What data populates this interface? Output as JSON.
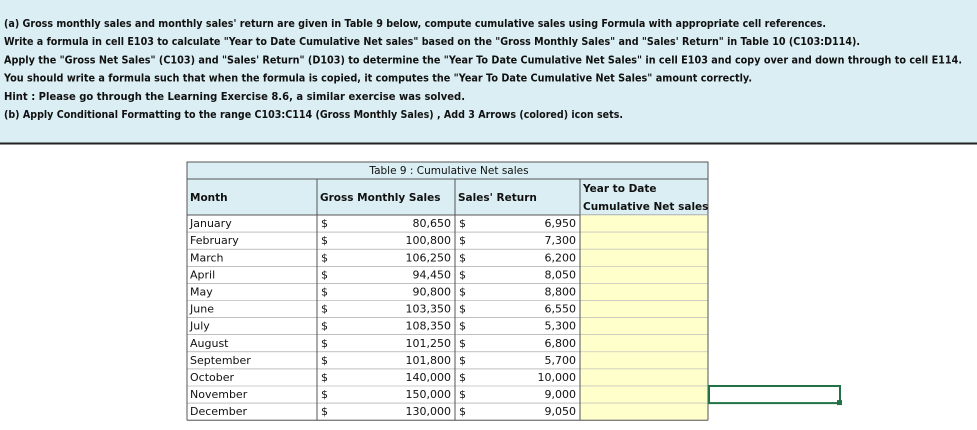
{
  "instructions": [
    "(a) Gross monthly sales and monthly sales' return are given in Table 9 below, compute cumulative sales using Formula with appropriate cell references.",
    "Write a formula in cell E103 to calculate \"Year to Date Cumulative Net sales\" based on the \"Gross Monthly Sales\" and \"Sales' Return\" in Table 10 (C103:D114).",
    "Apply the \"Gross Net Sales\" (C103) and \"Sales' Return\" (D103) to determine the \"Year To Date Cumulative Net Sales\" in cell E103 and copy over and down through to cell E114.",
    "You should write a formula such that when the formula is copied, it computes the \"Year To Date Cumulative Net Sales\" amount correctly.",
    "Hint : Please go through the Learning Exercise 8.6, a similar exercise was solved.",
    "(b) Apply Conditional Formatting to the range C103:C114 (Gross Monthly Sales) , Add 3 Arrows (colored) icon sets."
  ],
  "table": {
    "title": "Table 9 : Cumulative Net sales",
    "headers": [
      "Month",
      "Gross Monthly Sales",
      "Sales' Return",
      [
        "Year to Date",
        "Cumulative Net sales"
      ]
    ],
    "rows": [
      [
        "January",
        "$",
        "80,650",
        "$",
        "6,950"
      ],
      [
        "February",
        "$",
        "100,800",
        "$",
        "7,300"
      ],
      [
        "March",
        "$",
        "106,250",
        "$",
        "6,200"
      ],
      [
        "April",
        "$",
        "94,450",
        "$",
        "8,050"
      ],
      [
        "May",
        "$",
        "90,800",
        "$",
        "8,800"
      ],
      [
        "June",
        "$",
        "103,350",
        "$",
        "6,550"
      ],
      [
        "July",
        "$",
        "108,350",
        "$",
        "5,300"
      ],
      [
        "August",
        "$",
        "101,250",
        "$",
        "6,800"
      ],
      [
        "September",
        "$",
        "101,800",
        "$",
        "5,700"
      ],
      [
        "October",
        "$",
        "140,000",
        "$",
        "10,000"
      ],
      [
        "November",
        "$",
        "150,000",
        "$",
        "9,000"
      ],
      [
        "December",
        "$",
        "130,000",
        "$",
        "9,050"
      ]
    ]
  }
}
